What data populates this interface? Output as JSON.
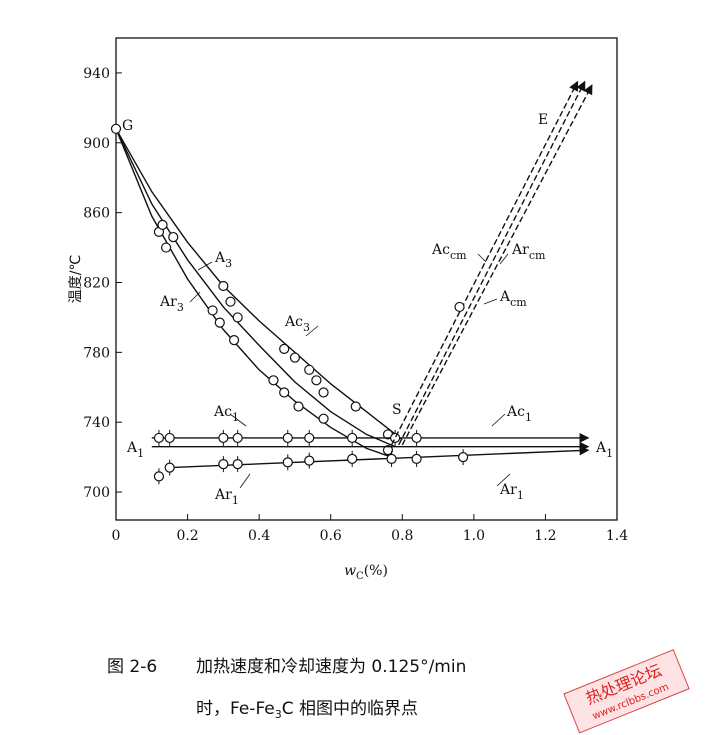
{
  "chart_data": {
    "type": "line",
    "ylabel": "温度/℃",
    "xlabel": {
      "text": "w",
      "sub": "C",
      "rest": "(%)"
    },
    "xlim": [
      0,
      1.4
    ],
    "ylim": [
      684,
      960
    ],
    "xticks": [
      0,
      0.2,
      0.4,
      0.6,
      0.8,
      {
        "value": 1,
        "label": "1.0"
      },
      1.2,
      1.4
    ],
    "yticks": [
      700,
      740,
      780,
      820,
      860,
      900,
      940
    ],
    "color": "#111",
    "series": [
      {
        "style": "solid",
        "x": [
          0,
          0.1,
          0.2,
          0.3,
          0.4,
          0.5,
          0.6,
          0.7,
          0.8
        ],
        "values": [
          908,
          872,
          843,
          818,
          798,
          780,
          762,
          746,
          730
        ]
      },
      {
        "style": "solid",
        "x": [
          0,
          0.1,
          0.2,
          0.3,
          0.4,
          0.5,
          0.6,
          0.7,
          0.78
        ],
        "values": [
          908,
          865,
          833,
          806,
          784,
          763,
          746,
          733,
          726
        ]
      },
      {
        "style": "solid",
        "x": [
          0,
          0.1,
          0.2,
          0.3,
          0.4,
          0.5,
          0.6,
          0.7,
          0.77
        ],
        "values": [
          908,
          858,
          822,
          793,
          770,
          752,
          737,
          725,
          720
        ]
      },
      {
        "style": "points",
        "x": [
          0.12,
          0.13,
          0.16,
          0.3,
          0.32,
          0.34,
          0.47,
          0.5,
          0.54,
          0.56,
          0.58,
          0.67,
          0.76
        ],
        "values": [
          849,
          853,
          846,
          818,
          809,
          800,
          782,
          777,
          770,
          764,
          757,
          749,
          733
        ]
      },
      {
        "style": "points",
        "x": [
          0.14,
          0.27,
          0.29,
          0.33,
          0.44,
          0.47,
          0.51,
          0.58,
          0.76
        ],
        "values": [
          840,
          804,
          797,
          787,
          764,
          757,
          749,
          742,
          724
        ]
      },
      {
        "style": "solid",
        "arrow": true,
        "x": [
          0.1,
          1.32
        ],
        "values": [
          731,
          731
        ]
      },
      {
        "style": "solid",
        "arrow": true,
        "x": [
          0.1,
          1.32
        ],
        "values": [
          726,
          726
        ]
      },
      {
        "style": "solid",
        "arrow": true,
        "x": [
          0.15,
          1.32
        ],
        "values": [
          714,
          724
        ]
      },
      {
        "style": "points-bar",
        "x": [
          0.12,
          0.15,
          0.3,
          0.34,
          0.48,
          0.54,
          0.66,
          0.78,
          0.84
        ],
        "values": [
          731,
          731,
          731,
          731,
          731,
          731,
          731,
          731,
          731
        ]
      },
      {
        "style": "points-bar",
        "x": [
          0.12,
          0.15,
          0.3,
          0.34,
          0.48,
          0.54,
          0.66,
          0.77,
          0.84,
          0.97
        ],
        "values": [
          709,
          714,
          716,
          716,
          717,
          718,
          719,
          719,
          719,
          720
        ]
      },
      {
        "style": "dashed",
        "arrow": true,
        "x": [
          0.77,
          1.29
        ],
        "values": [
          727,
          935
        ]
      },
      {
        "style": "dashed",
        "arrow": true,
        "x": [
          0.79,
          1.31
        ],
        "values": [
          727,
          935
        ]
      },
      {
        "style": "dashed",
        "arrow": true,
        "x": [
          0.8,
          1.33
        ],
        "values": [
          727,
          933
        ]
      },
      {
        "style": "points",
        "x": [
          0,
          0.96
        ],
        "values": [
          908,
          806
        ]
      }
    ],
    "annotations": [
      {
        "text": "G"
      },
      {
        "text": "S"
      },
      {
        "text": "E"
      },
      {
        "text": "A",
        "sub": "3"
      },
      {
        "text": "Ar",
        "sub": "3"
      },
      {
        "text": "Ac",
        "sub": "3"
      },
      {
        "text": "Ac",
        "sub": "cm"
      },
      {
        "text": "Ar",
        "sub": "cm"
      },
      {
        "text": "A",
        "sub": "cm"
      },
      {
        "text": "Ac",
        "sub": "1"
      },
      {
        "text": "Ac",
        "sub": "1"
      },
      {
        "text": "A",
        "sub": "1"
      },
      {
        "text": "A",
        "sub": "1"
      },
      {
        "text": "Ar",
        "sub": "1"
      },
      {
        "text": "Ar",
        "sub": "1"
      }
    ]
  },
  "caption": {
    "figure": "图 2-6",
    "line1": "加热速度和冷却速度为 0.125°/min",
    "line2": {
      "a": "时，Fe-Fe",
      "sub": "3",
      "b": "C 相图中的临界点"
    }
  },
  "watermark": {
    "title": "热处理论坛",
    "url": "www.rclbbs.com"
  }
}
